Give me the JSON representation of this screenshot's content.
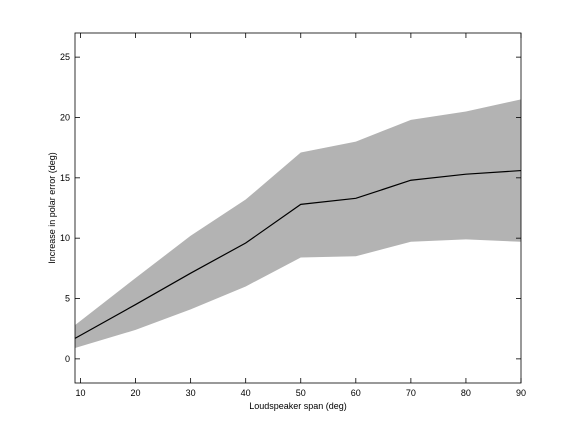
{
  "chart_data": {
    "type": "area",
    "xlabel": "Loudspeaker span (deg)",
    "ylabel": "Increase in polar error (deg)",
    "xlim": [
      9,
      90
    ],
    "ylim": [
      -2,
      27
    ],
    "x_ticks": [
      10,
      20,
      30,
      40,
      50,
      60,
      70,
      80,
      90
    ],
    "y_ticks": [
      0,
      5,
      10,
      15,
      20,
      25
    ],
    "grid": false,
    "colors": {
      "band": "#b3b3b3",
      "line": "#000000",
      "axes": "#000000"
    },
    "series": [
      {
        "x": [
          9,
          20,
          30,
          40,
          50,
          60,
          70,
          80,
          90
        ],
        "values": [
          1.7,
          4.5,
          7.1,
          9.6,
          12.8,
          13.3,
          14.8,
          15.3,
          15.6
        ],
        "upper": [
          2.8,
          6.7,
          10.2,
          13.2,
          17.1,
          18.0,
          19.8,
          20.5,
          21.5
        ],
        "lower": [
          0.9,
          2.4,
          4.1,
          6.0,
          8.4,
          8.5,
          9.7,
          9.9,
          9.7
        ]
      }
    ]
  }
}
